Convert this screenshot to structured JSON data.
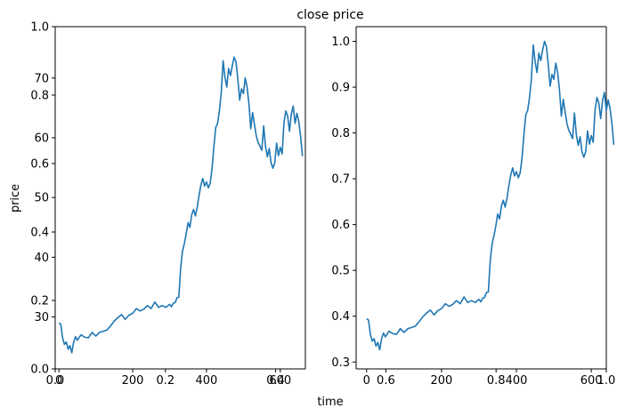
{
  "chart_data": {
    "type": "line",
    "title": "close price",
    "xlabel": "time",
    "ylabel": "price",
    "figure_background": "#ffffff",
    "line_color": "#1f77b4",
    "background_axes": {
      "xlim": [
        0,
        1
      ],
      "ylim": [
        0,
        1
      ],
      "x_ticks": [
        {
          "value": 0.0,
          "label": "0.0"
        },
        {
          "value": 0.2,
          "label": "0.2"
        },
        {
          "value": 0.4,
          "label": "0.4"
        },
        {
          "value": 0.6,
          "label": "0.6"
        },
        {
          "value": 0.8,
          "label": "0.8"
        },
        {
          "value": 1.0,
          "label": "1.0"
        }
      ],
      "y_ticks": [
        {
          "value": 0.0,
          "label": "0.0"
        },
        {
          "value": 0.2,
          "label": "0.2"
        },
        {
          "value": 0.4,
          "label": "0.4"
        },
        {
          "value": 0.6,
          "label": "0.6"
        },
        {
          "value": 0.8,
          "label": "0.8"
        },
        {
          "value": 1.0,
          "label": "1.0"
        }
      ]
    },
    "panels": [
      {
        "name": "raw",
        "xlim": [
          -10,
          668
        ],
        "ylim": [
          21.3,
          78.6
        ],
        "x_ticks": [
          {
            "value": 0,
            "label": "0"
          },
          {
            "value": 200,
            "label": "200"
          },
          {
            "value": 400,
            "label": "400"
          },
          {
            "value": 600,
            "label": "600"
          }
        ],
        "y_ticks": [
          {
            "value": 30,
            "label": "30"
          },
          {
            "value": 40,
            "label": "40"
          },
          {
            "value": 50,
            "label": "50"
          },
          {
            "value": 60,
            "label": "60"
          },
          {
            "value": 70,
            "label": "70"
          }
        ]
      },
      {
        "name": "normalized",
        "xlim": [
          -28,
          640
        ],
        "ylim": [
          0.285,
          1.032
        ],
        "x_ticks": [
          {
            "value": 0,
            "label": "0"
          },
          {
            "value": 200,
            "label": "200"
          },
          {
            "value": 400,
            "label": "400"
          },
          {
            "value": 600,
            "label": "600"
          }
        ],
        "y_ticks": [
          {
            "value": 0.3,
            "label": "0.3"
          },
          {
            "value": 0.4,
            "label": "0.4"
          },
          {
            "value": 0.5,
            "label": "0.5"
          },
          {
            "value": 0.6,
            "label": "0.6"
          },
          {
            "value": 0.7,
            "label": "0.7"
          },
          {
            "value": 0.8,
            "label": "0.8"
          },
          {
            "value": 0.9,
            "label": "0.9"
          },
          {
            "value": 1.0,
            "label": "1.0"
          }
        ]
      }
    ],
    "series": [
      {
        "name": "close price",
        "x": [
          0,
          5,
          10,
          15,
          20,
          25,
          30,
          35,
          40,
          45,
          50,
          60,
          70,
          80,
          90,
          100,
          110,
          120,
          130,
          140,
          150,
          160,
          170,
          180,
          190,
          200,
          210,
          220,
          230,
          240,
          250,
          260,
          270,
          280,
          290,
          300,
          305,
          310,
          315,
          320,
          325,
          330,
          335,
          340,
          345,
          350,
          355,
          360,
          365,
          370,
          375,
          380,
          385,
          390,
          395,
          400,
          405,
          410,
          415,
          420,
          425,
          430,
          435,
          440,
          445,
          450,
          455,
          460,
          465,
          470,
          475,
          480,
          485,
          490,
          495,
          500,
          505,
          510,
          515,
          520,
          525,
          530,
          535,
          540,
          545,
          550,
          555,
          560,
          565,
          570,
          575,
          580,
          585,
          590,
          595,
          600,
          605,
          610,
          615,
          620,
          625,
          630,
          635,
          640,
          645,
          650,
          655,
          660
        ],
        "values": [
          29.0,
          28.8,
          26.5,
          25.4,
          25.8,
          24.6,
          25.2,
          24.0,
          25.8,
          26.7,
          26.1,
          27.0,
          26.6,
          26.5,
          27.4,
          26.8,
          27.4,
          27.6,
          27.8,
          28.5,
          29.3,
          29.9,
          30.4,
          29.6,
          30.3,
          30.6,
          31.4,
          31.0,
          31.3,
          31.9,
          31.4,
          32.5,
          31.6,
          31.9,
          31.6,
          32.1,
          31.7,
          32.3,
          32.4,
          33.2,
          33.3,
          38.2,
          41.0,
          42.3,
          43.9,
          45.8,
          45.0,
          47.1,
          48.0,
          46.9,
          48.4,
          50.4,
          52.1,
          53.2,
          51.9,
          52.6,
          51.6,
          52.4,
          54.8,
          58.5,
          61.7,
          62.4,
          64.5,
          67.5,
          72.9,
          70.2,
          68.5,
          71.6,
          70.4,
          72.1,
          73.5,
          72.7,
          69.8,
          66.3,
          68.2,
          67.4,
          70.0,
          68.5,
          65.7,
          61.5,
          64.2,
          62.2,
          60.3,
          59.2,
          58.6,
          57.9,
          62.0,
          58.5,
          56.8,
          58.2,
          55.8,
          54.9,
          55.8,
          59.1,
          57.0,
          58.4,
          57.3,
          62.5,
          64.5,
          63.6,
          61.1,
          64.0,
          65.3,
          62.4,
          64.1,
          62.7,
          60.3,
          56.9
        ]
      }
    ]
  }
}
